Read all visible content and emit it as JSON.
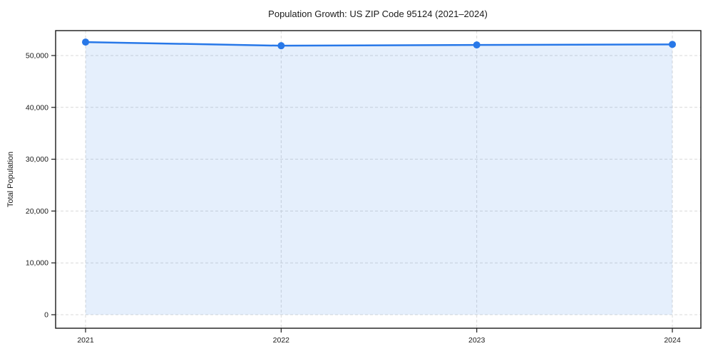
{
  "chart_data": {
    "type": "area",
    "title": "Population Growth: US ZIP Code 95124 (2021–2024)",
    "xlabel": "",
    "ylabel": "Total Population",
    "categories": [
      "2021",
      "2022",
      "2023",
      "2024"
    ],
    "series": [
      {
        "name": "Total Population",
        "values": [
          52600,
          51900,
          52050,
          52150
        ]
      }
    ],
    "yticks": [
      0,
      10000,
      20000,
      30000,
      40000,
      50000
    ],
    "ylim": [
      -2600,
      54800
    ],
    "grid": "dashed",
    "legend_position": "none",
    "marker": "circle",
    "colors": {
      "line": "#2878E8",
      "marker": "#2878E8",
      "area_fill": "rgba(40, 120, 232, 0.12)",
      "grid": "#d9d9d9",
      "axis": "#1a1a1a",
      "text": "#1a1a1a",
      "background": "#ffffff"
    }
  }
}
